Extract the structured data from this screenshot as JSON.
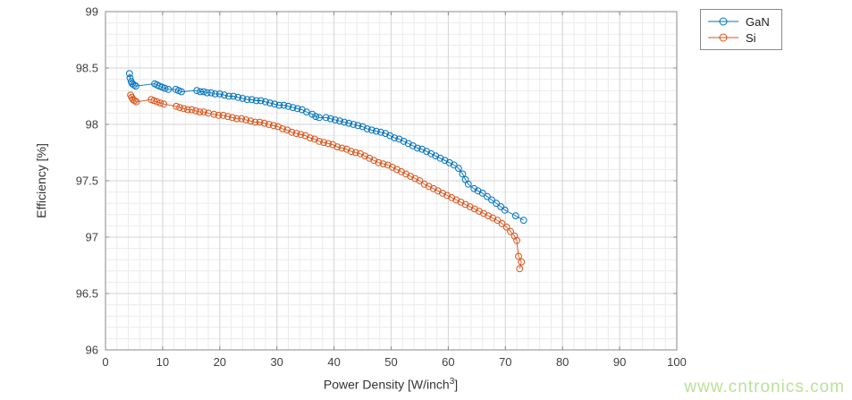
{
  "watermark": {
    "text": "www.cntronics.com",
    "color": "#b8e298"
  },
  "colors": {
    "background": "#ffffff",
    "axis_box": "#8a8a8a",
    "grid_major": "#d6d6d6",
    "grid_minor": "#ebebeb",
    "tick_text": "#404040",
    "gan_blue": "#0072BD",
    "si_orange": "#D95319"
  },
  "chart_data": {
    "type": "line",
    "title": "",
    "ylabel": "Efficiency [%]",
    "xlabel_parts": {
      "prefix": "Power Density [W/inch",
      "sup": "3",
      "suffix": "]"
    },
    "xlim": [
      0,
      100
    ],
    "ylim": [
      96,
      99
    ],
    "xticks": [
      0,
      10,
      20,
      30,
      40,
      50,
      60,
      70,
      80,
      90,
      100
    ],
    "xtick_labels": [
      "0",
      "10",
      "20",
      "30",
      "40",
      "50",
      "60",
      "70",
      "80",
      "90",
      "100"
    ],
    "yticks": [
      96,
      96.5,
      97,
      97.5,
      98,
      98.5,
      99
    ],
    "ytick_labels": [
      "96",
      "96.5",
      "97",
      "97.5",
      "98",
      "98.5",
      "99"
    ],
    "grid": true,
    "minor_grid": true,
    "minor_x_step": 2,
    "minor_y_step": 0.1,
    "legend_position": "top-right-outside",
    "marker": "open-circle",
    "series": [
      {
        "name": "GaN",
        "color": "#0072BD",
        "points": [
          [
            4.2,
            98.45
          ],
          [
            4.3,
            98.41
          ],
          [
            4.5,
            98.38
          ],
          [
            4.7,
            98.36
          ],
          [
            5.0,
            98.35
          ],
          [
            5.3,
            98.34
          ],
          [
            8.6,
            98.36
          ],
          [
            9.0,
            98.35
          ],
          [
            9.4,
            98.34
          ],
          [
            9.9,
            98.33
          ],
          [
            10.4,
            98.32
          ],
          [
            11.0,
            98.31
          ],
          [
            12.3,
            98.31
          ],
          [
            12.8,
            98.3
          ],
          [
            13.3,
            98.29
          ],
          [
            16.0,
            98.3
          ],
          [
            16.6,
            98.29
          ],
          [
            17.2,
            98.29
          ],
          [
            17.8,
            98.28
          ],
          [
            18.5,
            98.28
          ],
          [
            19.2,
            98.27
          ],
          [
            20.0,
            98.27
          ],
          [
            20.8,
            98.26
          ],
          [
            21.6,
            98.25
          ],
          [
            22.4,
            98.25
          ],
          [
            23.2,
            98.24
          ],
          [
            24.0,
            98.23
          ],
          [
            24.8,
            98.22
          ],
          [
            25.6,
            98.22
          ],
          [
            26.4,
            98.21
          ],
          [
            27.2,
            98.21
          ],
          [
            28.0,
            98.2
          ],
          [
            28.8,
            98.19
          ],
          [
            29.6,
            98.18
          ],
          [
            30.4,
            98.17
          ],
          [
            31.2,
            98.17
          ],
          [
            32.0,
            98.16
          ],
          [
            32.8,
            98.15
          ],
          [
            33.6,
            98.14
          ],
          [
            34.4,
            98.13
          ],
          [
            35.2,
            98.11
          ],
          [
            36.2,
            98.09
          ],
          [
            36.8,
            98.07
          ],
          [
            37.4,
            98.06
          ],
          [
            38.6,
            98.06
          ],
          [
            39.4,
            98.05
          ],
          [
            40.2,
            98.04
          ],
          [
            41.0,
            98.03
          ],
          [
            41.8,
            98.02
          ],
          [
            42.6,
            98.01
          ],
          [
            43.4,
            98.0
          ],
          [
            44.2,
            97.99
          ],
          [
            45.0,
            97.98
          ],
          [
            45.8,
            97.96
          ],
          [
            46.6,
            97.95
          ],
          [
            47.4,
            97.94
          ],
          [
            48.2,
            97.93
          ],
          [
            49.0,
            97.92
          ],
          [
            49.8,
            97.9
          ],
          [
            50.6,
            97.88
          ],
          [
            51.4,
            97.87
          ],
          [
            52.2,
            97.85
          ],
          [
            53.0,
            97.83
          ],
          [
            53.8,
            97.81
          ],
          [
            54.6,
            97.79
          ],
          [
            55.4,
            97.78
          ],
          [
            56.2,
            97.76
          ],
          [
            57.0,
            97.74
          ],
          [
            57.8,
            97.72
          ],
          [
            58.6,
            97.7
          ],
          [
            59.4,
            97.68
          ],
          [
            60.2,
            97.66
          ],
          [
            61.0,
            97.64
          ],
          [
            61.8,
            97.61
          ],
          [
            62.5,
            97.56
          ],
          [
            63.0,
            97.51
          ],
          [
            63.5,
            97.47
          ],
          [
            64.5,
            97.43
          ],
          [
            65.2,
            97.41
          ],
          [
            66.0,
            97.39
          ],
          [
            66.8,
            97.36
          ],
          [
            67.6,
            97.33
          ],
          [
            68.4,
            97.3
          ],
          [
            69.2,
            97.27
          ],
          [
            69.9,
            97.24
          ],
          [
            71.8,
            97.19
          ],
          [
            73.2,
            97.15
          ]
        ]
      },
      {
        "name": "Si",
        "color": "#D95319",
        "points": [
          [
            4.4,
            98.26
          ],
          [
            4.6,
            98.24
          ],
          [
            4.8,
            98.22
          ],
          [
            5.1,
            98.21
          ],
          [
            5.4,
            98.2
          ],
          [
            8.0,
            98.22
          ],
          [
            8.5,
            98.21
          ],
          [
            9.0,
            98.2
          ],
          [
            9.6,
            98.19
          ],
          [
            10.2,
            98.18
          ],
          [
            12.4,
            98.16
          ],
          [
            13.0,
            98.15
          ],
          [
            13.7,
            98.14
          ],
          [
            14.4,
            98.13
          ],
          [
            15.1,
            98.13
          ],
          [
            15.8,
            98.12
          ],
          [
            16.5,
            98.11
          ],
          [
            17.2,
            98.11
          ],
          [
            18.0,
            98.1
          ],
          [
            19.0,
            98.09
          ],
          [
            19.8,
            98.08
          ],
          [
            20.6,
            98.08
          ],
          [
            21.4,
            98.07
          ],
          [
            22.2,
            98.06
          ],
          [
            23.0,
            98.05
          ],
          [
            23.8,
            98.05
          ],
          [
            24.6,
            98.04
          ],
          [
            25.4,
            98.03
          ],
          [
            26.2,
            98.02
          ],
          [
            27.0,
            98.02
          ],
          [
            27.8,
            98.01
          ],
          [
            28.6,
            98.0
          ],
          [
            29.4,
            97.99
          ],
          [
            30.2,
            97.98
          ],
          [
            31.0,
            97.96
          ],
          [
            31.8,
            97.95
          ],
          [
            32.6,
            97.93
          ],
          [
            33.4,
            97.92
          ],
          [
            34.2,
            97.91
          ],
          [
            35.0,
            97.9
          ],
          [
            35.8,
            97.88
          ],
          [
            36.6,
            97.87
          ],
          [
            37.4,
            97.85
          ],
          [
            38.2,
            97.84
          ],
          [
            39.0,
            97.83
          ],
          [
            39.8,
            97.82
          ],
          [
            40.6,
            97.8
          ],
          [
            41.4,
            97.79
          ],
          [
            42.2,
            97.78
          ],
          [
            43.0,
            97.76
          ],
          [
            43.8,
            97.75
          ],
          [
            44.6,
            97.74
          ],
          [
            45.4,
            97.72
          ],
          [
            46.2,
            97.7
          ],
          [
            47.0,
            97.68
          ],
          [
            47.8,
            97.66
          ],
          [
            48.6,
            97.65
          ],
          [
            49.4,
            97.64
          ],
          [
            50.2,
            97.62
          ],
          [
            51.0,
            97.6
          ],
          [
            51.8,
            97.58
          ],
          [
            52.6,
            97.56
          ],
          [
            53.4,
            97.54
          ],
          [
            54.2,
            97.52
          ],
          [
            55.0,
            97.5
          ],
          [
            55.8,
            97.47
          ],
          [
            56.6,
            97.45
          ],
          [
            57.4,
            97.43
          ],
          [
            58.2,
            97.41
          ],
          [
            59.0,
            97.39
          ],
          [
            59.8,
            97.37
          ],
          [
            60.6,
            97.35
          ],
          [
            61.4,
            97.33
          ],
          [
            62.2,
            97.31
          ],
          [
            63.0,
            97.29
          ],
          [
            63.8,
            97.27
          ],
          [
            64.6,
            97.25
          ],
          [
            65.4,
            97.23
          ],
          [
            66.2,
            97.21
          ],
          [
            67.0,
            97.19
          ],
          [
            67.8,
            97.17
          ],
          [
            68.6,
            97.15
          ],
          [
            69.4,
            97.12
          ],
          [
            70.2,
            97.09
          ],
          [
            70.9,
            97.05
          ],
          [
            71.6,
            97.01
          ],
          [
            72.0,
            96.97
          ],
          [
            72.3,
            96.83
          ],
          [
            72.8,
            96.78
          ],
          [
            72.5,
            96.72
          ]
        ]
      }
    ]
  }
}
